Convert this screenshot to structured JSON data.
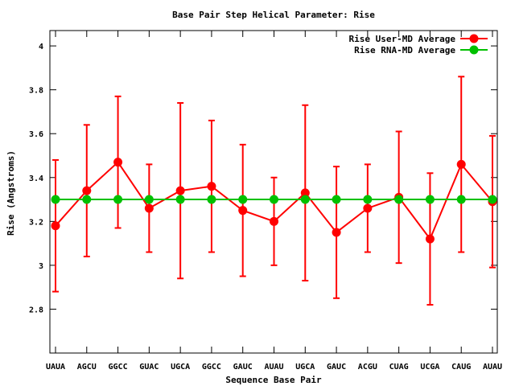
{
  "chart_data": {
    "type": "line",
    "title": "Base Pair Step Helical Parameter: Rise",
    "xlabel": "Sequence Base Pair",
    "ylabel": "Rise (Angstroms)",
    "categories": [
      "UAUA",
      "AGCU",
      "GGCC",
      "GUAC",
      "UGCA",
      "GGCC",
      "GAUC",
      "AUAU",
      "UGCA",
      "GAUC",
      "ACGU",
      "CUAG",
      "UCGA",
      "CAUG",
      "AUAU"
    ],
    "ylim": [
      2.6,
      4.07
    ],
    "yticks": [
      2.8,
      3,
      3.2,
      3.4,
      3.6,
      3.8,
      4
    ],
    "ytick_labels": [
      "2.8",
      "3",
      "3.2",
      "3.4",
      "3.6",
      "3.8",
      "4"
    ],
    "legend_position": "top-right",
    "grid": false,
    "series": [
      {
        "name": "Rise User-MD Average",
        "color": "#ff0000",
        "values": [
          3.18,
          3.34,
          3.47,
          3.26,
          3.34,
          3.36,
          3.25,
          3.2,
          3.33,
          3.15,
          3.26,
          3.31,
          3.12,
          3.46,
          3.29
        ],
        "error_low": [
          2.88,
          3.04,
          3.17,
          3.06,
          2.94,
          3.06,
          2.95,
          3.0,
          2.93,
          2.85,
          3.06,
          3.01,
          2.82,
          3.06,
          2.99
        ],
        "error_high": [
          3.48,
          3.64,
          3.77,
          3.46,
          3.74,
          3.66,
          3.55,
          3.4,
          3.73,
          3.45,
          3.46,
          3.61,
          3.42,
          3.86,
          3.59
        ]
      },
      {
        "name": "Rise RNA-MD Average",
        "color": "#00c000",
        "values": [
          3.3,
          3.3,
          3.3,
          3.3,
          3.3,
          3.3,
          3.3,
          3.3,
          3.3,
          3.3,
          3.3,
          3.3,
          3.3,
          3.3,
          3.3
        ]
      }
    ]
  }
}
